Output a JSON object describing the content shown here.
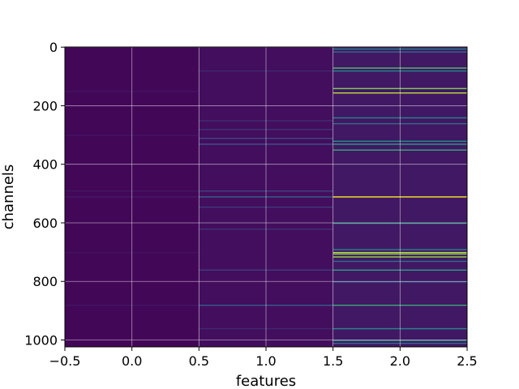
{
  "chart_data": {
    "type": "heatmap",
    "title": "",
    "xlabel": "features",
    "ylabel": "channels",
    "xlim": [
      -0.5,
      2.5
    ],
    "ylim": [
      1023.5,
      -0.5
    ],
    "x_ticks": [
      -0.5,
      0.0,
      0.5,
      1.0,
      1.5,
      2.0,
      2.5
    ],
    "x_tick_labels": [
      "−0.5",
      "0.0",
      "0.5",
      "1.0",
      "1.5",
      "2.0",
      "2.5"
    ],
    "y_ticks": [
      0,
      200,
      400,
      600,
      800,
      1000
    ],
    "y_tick_labels": [
      "0",
      "200",
      "400",
      "600",
      "800",
      "1000"
    ],
    "grid": true,
    "colormap": "viridis",
    "value_range": [
      0,
      1
    ],
    "columns": [
      {
        "feature": 0,
        "base": 0.02,
        "highlights": [
          [
            150,
            0.06
          ],
          [
            300,
            0.06
          ],
          [
            490,
            0.07
          ],
          [
            510,
            0.08
          ],
          [
            700,
            0.06
          ],
          [
            880,
            0.07
          ]
        ]
      },
      {
        "feature": 1,
        "base": 0.04,
        "highlights": [
          [
            80,
            0.12
          ],
          [
            250,
            0.14
          ],
          [
            280,
            0.16
          ],
          [
            310,
            0.22
          ],
          [
            330,
            0.25
          ],
          [
            490,
            0.2
          ],
          [
            510,
            0.3
          ],
          [
            545,
            0.18
          ],
          [
            620,
            0.15
          ],
          [
            760,
            0.18
          ],
          [
            880,
            0.28
          ],
          [
            960,
            0.12
          ]
        ]
      },
      {
        "feature": 2,
        "base": 0.07,
        "highlights": [
          [
            5,
            0.45
          ],
          [
            15,
            0.35
          ],
          [
            70,
            0.7
          ],
          [
            80,
            0.45
          ],
          [
            140,
            0.8
          ],
          [
            155,
            0.9
          ],
          [
            240,
            0.45
          ],
          [
            260,
            0.35
          ],
          [
            320,
            0.5
          ],
          [
            330,
            0.55
          ],
          [
            350,
            0.6
          ],
          [
            510,
            1.0
          ],
          [
            600,
            0.55
          ],
          [
            690,
            0.45
          ],
          [
            700,
            0.9
          ],
          [
            705,
            0.8
          ],
          [
            715,
            0.85
          ],
          [
            730,
            0.35
          ],
          [
            760,
            0.55
          ],
          [
            800,
            0.35
          ],
          [
            880,
            0.6
          ],
          [
            960,
            0.45
          ],
          [
            1000,
            0.55
          ],
          [
            1010,
            0.35
          ]
        ]
      }
    ]
  }
}
